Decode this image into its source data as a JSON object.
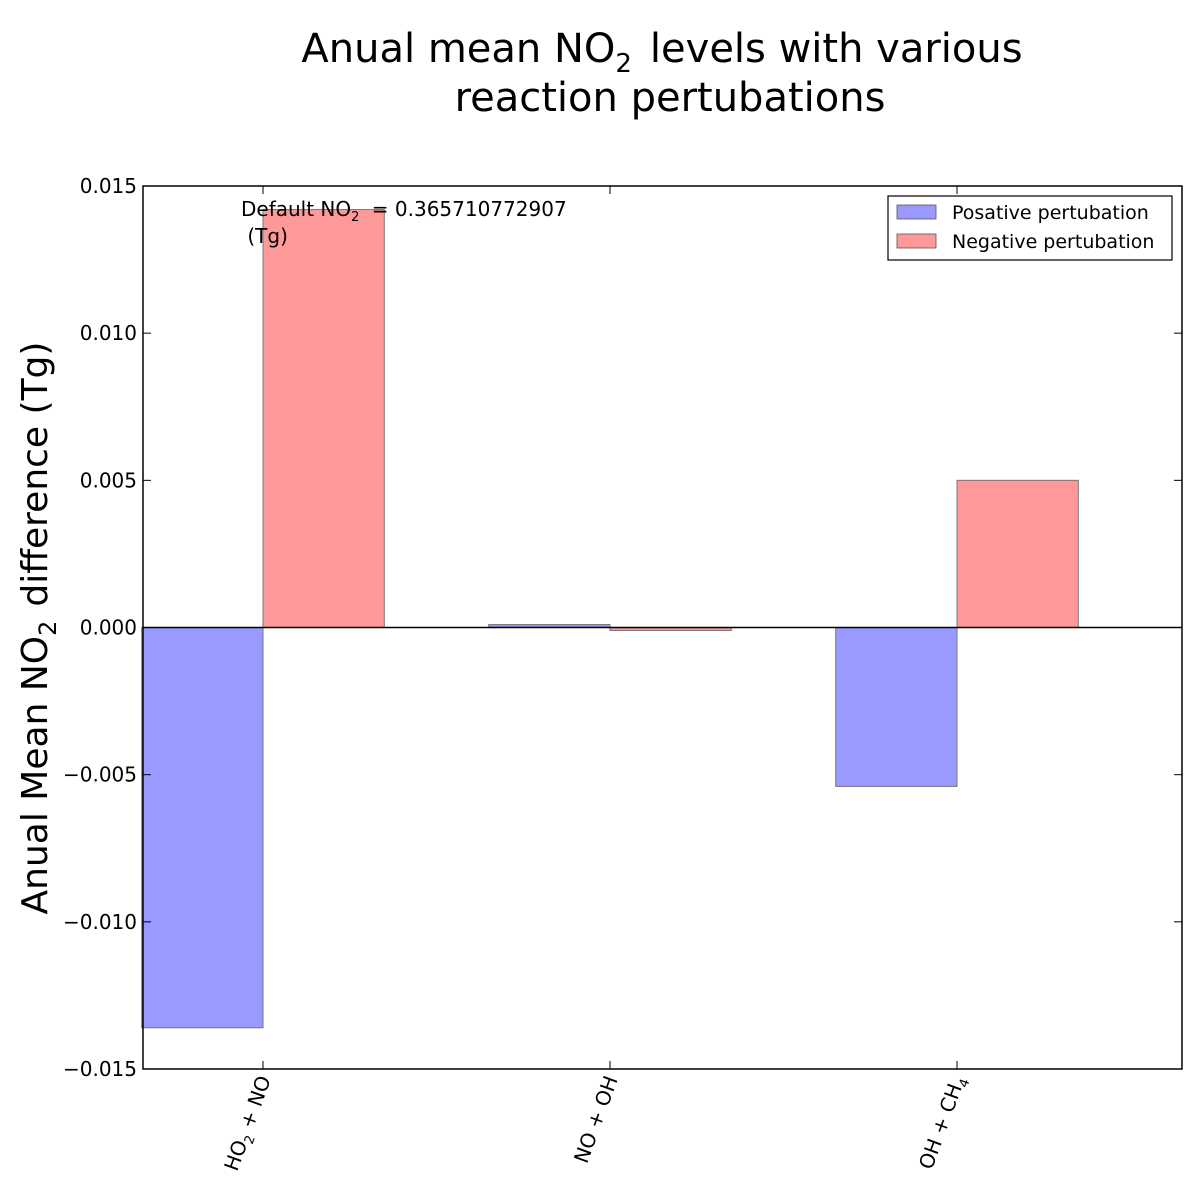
{
  "chart_data": {
    "type": "bar",
    "title_line1": "Anual mean NO",
    "title_sub": "2",
    "title_line1_rest": "levels with  various",
    "title_line2": "reaction pertubations",
    "ylabel_main": "Anual Mean NO",
    "ylabel_sub": "2",
    "ylabel_rest": "difference (Tg)",
    "ylim": [
      -0.015,
      0.015
    ],
    "yticks": [
      -0.015,
      -0.01,
      -0.005,
      0.0,
      0.005,
      0.01,
      0.015
    ],
    "ytick_labels": [
      "−0.015",
      "−0.010",
      "−0.005",
      "0.000",
      "0.005",
      "0.010",
      "0.015"
    ],
    "categories": [
      {
        "main": "HO",
        "sub": "2",
        "rest": " + NO"
      },
      {
        "main": "NO + OH",
        "sub": "",
        "rest": ""
      },
      {
        "main": "OH + CH",
        "sub": "4",
        "rest": ""
      }
    ],
    "series": [
      {
        "name": "Posative pertubation",
        "color": "#9999ff",
        "values": [
          -0.0136,
          0.0001,
          -0.0054
        ]
      },
      {
        "name": "Negative pertubation",
        "color": "#ff9999",
        "values": [
          0.0142,
          -0.0001,
          0.005
        ]
      }
    ],
    "annotation": {
      "prefix": "Default NO",
      "sub": "2",
      "suffix": " = 0.365710772907",
      "line2": " (Tg)"
    },
    "legend_position": "top-right",
    "grid": false
  }
}
